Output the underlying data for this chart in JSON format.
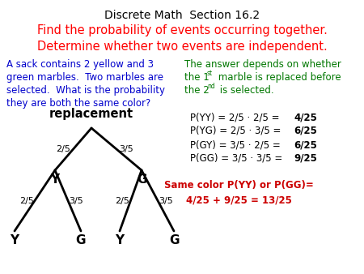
{
  "title_black": "Discrete Math  Section 16.2",
  "title_red_line1": "Find the probability of events occurring together.",
  "title_red_line2": "Determine whether two events are independent.",
  "left_text_color": "#0000cc",
  "left_text_line1": "A sack contains 2 yellow and 3",
  "left_text_line2": "green marbles.  Two marbles are",
  "left_text_line3": "selected.  What is the probability",
  "left_text_line4": "they are both the same color?",
  "right_text_color": "#007700",
  "right_text_line1": "The answer depends on whether",
  "right_text_line2a": "the 1",
  "right_text_line2b": "st",
  "right_text_line2c": " marble is replaced before",
  "right_text_line3a": "the 2",
  "right_text_line3b": "nd",
  "right_text_line3c": " is selected.",
  "prob_lines": [
    "P(YY) = 2/5 · 2/5 = ",
    "P(YG) = 2/5 · 3/5 = ",
    "P(GY) = 3/5 · 2/5 = ",
    "P(GG) = 3/5 · 3/5 = "
  ],
  "prob_bold": [
    "4/25",
    "6/25",
    "6/25",
    "9/25"
  ],
  "same_color_line1": "Same color P(YY) or P(GG)=",
  "same_color_line2": "4/25 + 9/25 = 13/25",
  "same_color_color": "#cc0000",
  "bg_color": "#ffffff",
  "replacement_label": "replacement",
  "tree_lw": 2.0
}
